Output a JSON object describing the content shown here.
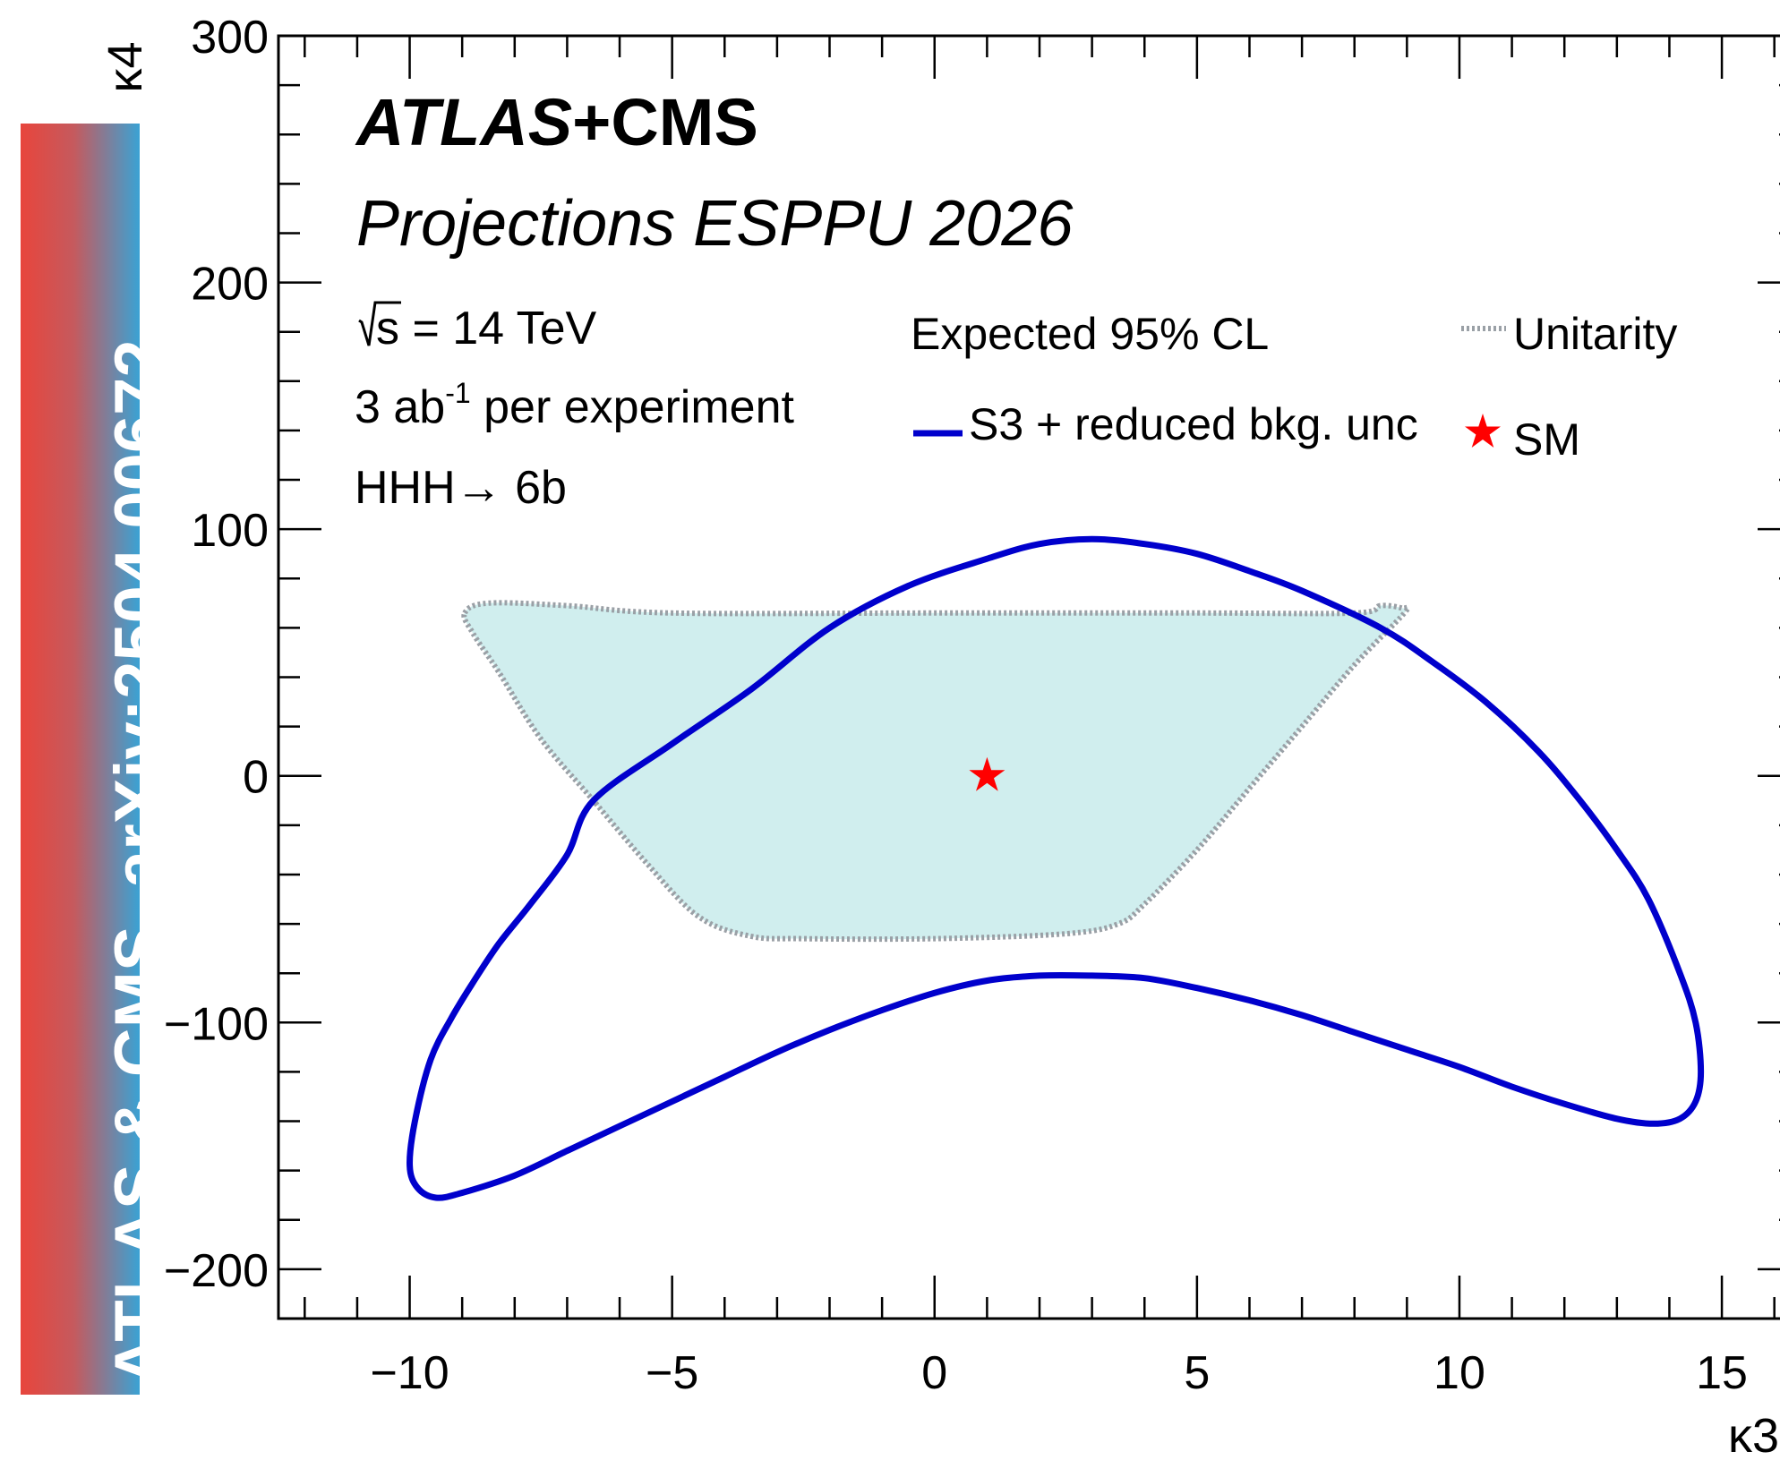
{
  "banner": {
    "text": "ATLAS & CMS, ",
    "link": "arXiv:2504.00672",
    "colors": [
      "#e8453c",
      "#3aa2d4"
    ]
  },
  "annotations": {
    "experiment_bold": "ATLAS",
    "experiment_rest": "+CMS",
    "projection": "Projections ESPPU 2026",
    "sqrt_s": "s = 14 TeV",
    "lumi_value": "3 ab",
    "lumi_exp": "-1",
    "lumi_suffix": " per experiment",
    "channel": "HHH→ 6b"
  },
  "legend": {
    "header": "Expected 95% CL",
    "unitarity": "Unitarity",
    "contour": "S3 + reduced bkg. unc",
    "sm": "SM"
  },
  "chart_data": {
    "type": "contour",
    "xlabel": "κ3",
    "ylabel": "κ4",
    "xlim": [
      -12.5,
      16.5
    ],
    "ylim": [
      -220,
      300
    ],
    "xticks": [
      -10,
      -5,
      0,
      5,
      10,
      15
    ],
    "yticks": [
      -200,
      -100,
      0,
      100,
      200,
      300
    ],
    "xtick_labels": [
      "−10",
      "−5",
      "0",
      "5",
      "10",
      "15"
    ],
    "ytick_labels": [
      "−200",
      "−100",
      "0",
      "100",
      "200",
      "300"
    ],
    "colors": {
      "contour": "#0000cc",
      "unitarity_line": "#9aa0a6",
      "unitarity_fill": "#d0eeee",
      "sm": "#ff0000"
    },
    "series": [
      {
        "name": "S3 + reduced bkg. unc",
        "style": "closed-contour",
        "points": [
          [
            -6.5,
            -10
          ],
          [
            -5.0,
            13
          ],
          [
            -3.5,
            35
          ],
          [
            -2.0,
            60
          ],
          [
            -0.5,
            77
          ],
          [
            1.0,
            88
          ],
          [
            2.0,
            94
          ],
          [
            3.0,
            96
          ],
          [
            4.0,
            94
          ],
          [
            5.0,
            90
          ],
          [
            6.0,
            83
          ],
          [
            7.0,
            75
          ],
          [
            8.5,
            60
          ],
          [
            9.5,
            46
          ],
          [
            10.5,
            30
          ],
          [
            11.5,
            10
          ],
          [
            12.3,
            -10
          ],
          [
            13.0,
            -30
          ],
          [
            13.6,
            -50
          ],
          [
            14.2,
            -80
          ],
          [
            14.5,
            -100
          ],
          [
            14.6,
            -120
          ],
          [
            14.5,
            -132
          ],
          [
            14.2,
            -139
          ],
          [
            13.7,
            -141
          ],
          [
            13.0,
            -139
          ],
          [
            12.0,
            -133
          ],
          [
            11.0,
            -126
          ],
          [
            10.0,
            -118
          ],
          [
            9.0,
            -111
          ],
          [
            8.0,
            -104
          ],
          [
            7.0,
            -97
          ],
          [
            6.0,
            -91
          ],
          [
            5.0,
            -86
          ],
          [
            4.0,
            -82
          ],
          [
            3.0,
            -81
          ],
          [
            2.0,
            -81
          ],
          [
            1.0,
            -83
          ],
          [
            0.0,
            -88
          ],
          [
            -1.0,
            -95
          ],
          [
            -2.0,
            -103
          ],
          [
            -3.0,
            -112
          ],
          [
            -4.0,
            -122
          ],
          [
            -5.0,
            -132
          ],
          [
            -6.0,
            -142
          ],
          [
            -7.0,
            -152
          ],
          [
            -8.0,
            -162
          ],
          [
            -9.0,
            -169
          ],
          [
            -9.5,
            -171
          ],
          [
            -9.85,
            -167
          ],
          [
            -10.0,
            -158
          ],
          [
            -9.9,
            -140
          ],
          [
            -9.6,
            -115
          ],
          [
            -9.2,
            -98
          ],
          [
            -8.8,
            -84
          ],
          [
            -8.3,
            -68
          ],
          [
            -7.7,
            -52
          ],
          [
            -7.0,
            -32
          ]
        ]
      },
      {
        "name": "Unitarity",
        "style": "dotted-filled-region",
        "points": [
          [
            -8.95,
            66
          ],
          [
            -8.5,
            70
          ],
          [
            -7.0,
            69
          ],
          [
            -5.0,
            66
          ],
          [
            0.0,
            66
          ],
          [
            5.0,
            66
          ],
          [
            8.0,
            66
          ],
          [
            8.5,
            69
          ],
          [
            8.9,
            68
          ],
          [
            8.95,
            66
          ],
          [
            8.0,
            45
          ],
          [
            7.0,
            20
          ],
          [
            6.0,
            -5
          ],
          [
            5.0,
            -30
          ],
          [
            4.0,
            -52
          ],
          [
            3.5,
            -60
          ],
          [
            2.5,
            -64
          ],
          [
            0.0,
            -66
          ],
          [
            -2.5,
            -66
          ],
          [
            -3.5,
            -65
          ],
          [
            -4.5,
            -57
          ],
          [
            -5.5,
            -35
          ],
          [
            -6.5,
            -10
          ],
          [
            -7.5,
            15
          ],
          [
            -8.3,
            42
          ],
          [
            -8.8,
            58
          ]
        ]
      }
    ],
    "markers": [
      {
        "name": "SM",
        "symbol": "star",
        "x": 1,
        "y": 0
      }
    ]
  }
}
